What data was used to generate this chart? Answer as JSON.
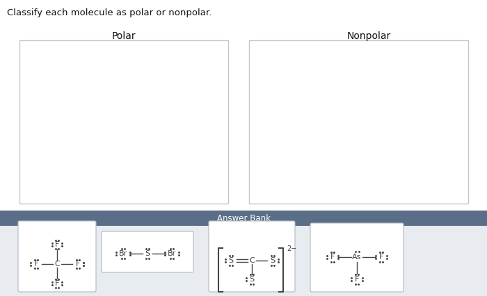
{
  "title": "Classify each molecule as polar or nonpolar.",
  "polar_label": "Polar",
  "nonpolar_label": "Nonpolar",
  "answer_bank_label": "Answer Bank",
  "bg_color": "#ffffff",
  "box_edge_color": "#c0c8d0",
  "answer_bank_header_color": "#5a6f87",
  "answer_bank_header_text_color": "#ffffff",
  "answer_bank_bg_color": "#e8ecf0",
  "molecule_box_bg": "#ffffff",
  "molecule_box_edge": "#b0b8c4",
  "molecule_text_color": "#333333"
}
